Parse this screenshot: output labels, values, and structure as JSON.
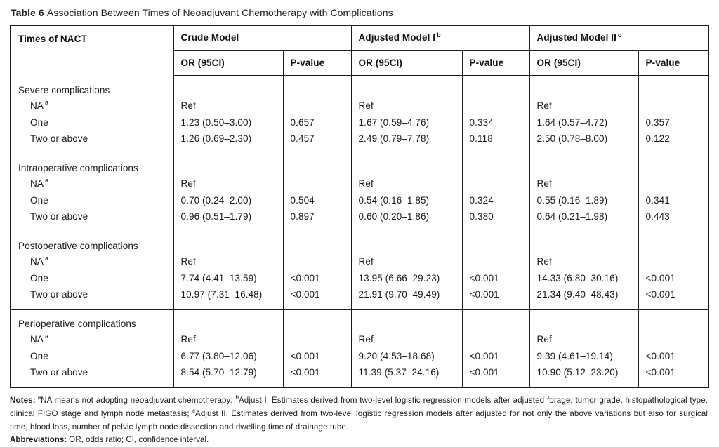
{
  "title": {
    "label": "Table 6",
    "text": "Association Between Times of Neoadjuvant Chemotherapy with Complications"
  },
  "table": {
    "col1_header": "Times of NACT",
    "model_groups": [
      {
        "label": "Crude Model",
        "sup": ""
      },
      {
        "label": "Adjusted Model I",
        "sup": "b"
      },
      {
        "label": "Adjusted Model II",
        "sup": "c"
      }
    ],
    "sub_headers": {
      "or": "OR (95CI)",
      "p": "P-value"
    },
    "sections": [
      {
        "name": "Severe complications",
        "rows": [
          {
            "label": "NA",
            "sup": "a",
            "cells": [
              "Ref",
              "",
              "Ref",
              "",
              "Ref",
              ""
            ]
          },
          {
            "label": "One",
            "sup": "",
            "cells": [
              "1.23 (0.50–3.00)",
              "0.657",
              "1.67 (0.59–4.76)",
              "0.334",
              "1.64 (0.57–4.72)",
              "0.357"
            ]
          },
          {
            "label": "Two or above",
            "sup": "",
            "cells": [
              "1.26 (0.69–2.30)",
              "0.457",
              "2.49 (0.79–7.78)",
              "0.118",
              "2.50 (0.78–8.00)",
              "0.122"
            ]
          }
        ]
      },
      {
        "name": "Intraoperative complications",
        "rows": [
          {
            "label": "NA",
            "sup": "a",
            "cells": [
              "Ref",
              "",
              "Ref",
              "",
              "Ref",
              ""
            ]
          },
          {
            "label": "One",
            "sup": "",
            "cells": [
              "0.70 (0.24–2.00)",
              "0.504",
              "0.54 (0.16–1.85)",
              "0.324",
              "0.55 (0.16–1.89)",
              "0.341"
            ]
          },
          {
            "label": "Two or above",
            "sup": "",
            "cells": [
              "0.96 (0.51–1.79)",
              "0.897",
              "0.60 (0.20–1.86)",
              "0.380",
              "0.64 (0.21–1.98)",
              "0.443"
            ]
          }
        ]
      },
      {
        "name": "Postoperative complications",
        "rows": [
          {
            "label": "NA",
            "sup": "a",
            "cells": [
              "Ref",
              "",
              "Ref",
              "",
              "Ref",
              ""
            ]
          },
          {
            "label": "One",
            "sup": "",
            "cells": [
              "7.74 (4.41–13.59)",
              "<0.001",
              "13.95 (6.66–29.23)",
              "<0.001",
              "14.33 (6.80–30.16)",
              "<0.001"
            ]
          },
          {
            "label": "Two or above",
            "sup": "",
            "cells": [
              "10.97 (7.31–16.48)",
              "<0.001",
              "21.91 (9.70–49.49)",
              "<0.001",
              "21.34 (9.40–48.43)",
              "<0.001"
            ]
          }
        ]
      },
      {
        "name": "Perioperative complications",
        "rows": [
          {
            "label": "NA",
            "sup": "a",
            "cells": [
              "Ref",
              "",
              "Ref",
              "",
              "Ref",
              ""
            ]
          },
          {
            "label": "One",
            "sup": "",
            "cells": [
              "6.77 (3.80–12.06)",
              "<0.001",
              "9.20 (4.53–18.68)",
              "<0.001",
              "9.39 (4.61–19.14)",
              "<0.001"
            ]
          },
          {
            "label": "Two or above",
            "sup": "",
            "cells": [
              "8.54 (5.70–12.79)",
              "<0.001",
              "11.39 (5.37–24.16)",
              "<0.001",
              "10.90 (5.12–23.20)",
              "<0.001"
            ]
          }
        ]
      }
    ]
  },
  "footnotes": {
    "notes_label": "Notes:",
    "notes_segments": [
      {
        "sup": "a",
        "text": "NA means not adopting neoadjuvant chemotherapy; "
      },
      {
        "sup": "b",
        "text": "Adjust I: Estimates derived from two-level logistic regression models after adjusted forage, tumor grade, histopathological type, clinical FIGO stage and lymph node metastasis; "
      },
      {
        "sup": "c",
        "text": "Adjust II: Estimates derived from two-level logistic regression models after adjusted for not only the above variations but also for surgical time, blood loss, number of pelvic lymph node dissection and dwelling time of drainage tube."
      }
    ],
    "abbreviations_label": "Abbreviations:",
    "abbreviations_text": "OR, odds ratio; CI, confidence interval."
  },
  "colors": {
    "text": "#1a1a1a",
    "border": "#1b1b1b",
    "background": "#ffffff"
  }
}
